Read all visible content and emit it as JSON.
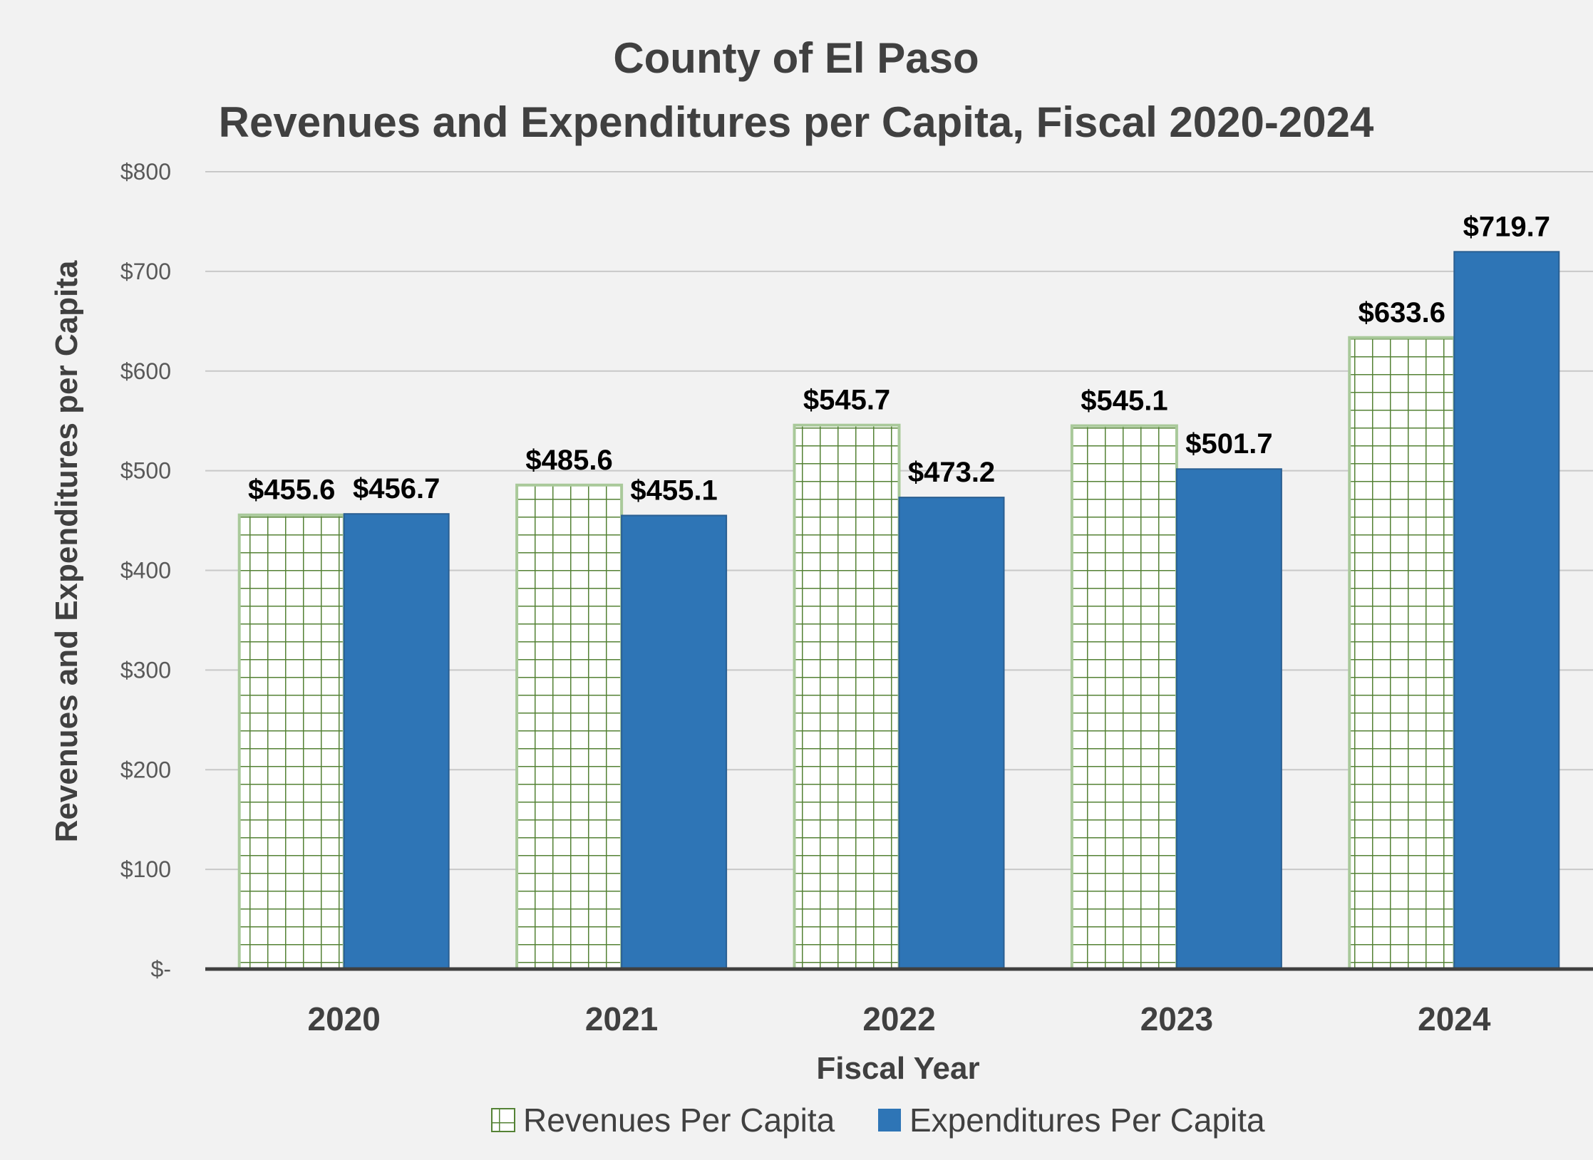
{
  "chart_data": {
    "type": "bar",
    "title": [
      "County of El Paso",
      "Revenues and Expenditures per Capita, Fiscal 2020-2024"
    ],
    "xlabel": "Fiscal Year",
    "ylabel": "Revenues and Expenditures per Capita",
    "categories": [
      "2020",
      "2021",
      "2022",
      "2023",
      "2024"
    ],
    "series": [
      {
        "name": "Revenues Per Capita",
        "values": [
          455.6,
          485.6,
          545.7,
          545.1,
          633.6
        ],
        "labels": [
          "$455.6",
          "$485.6",
          "$545.7",
          "$545.1",
          "$633.6"
        ],
        "fill": "grid-pattern",
        "color": "#548235"
      },
      {
        "name": "Expenditures Per Capita",
        "values": [
          456.7,
          455.1,
          473.2,
          501.7,
          719.7
        ],
        "labels": [
          "$456.7",
          "$455.1",
          "$473.2",
          "$501.7",
          "$719.7"
        ],
        "fill": "solid",
        "color": "#2e75b6"
      }
    ],
    "ylim": [
      0,
      800
    ],
    "yticks": [
      0,
      100,
      200,
      300,
      400,
      500,
      600,
      700,
      800
    ],
    "ytick_labels": [
      "$-",
      "$100",
      "$200",
      "$300",
      "$400",
      "$500",
      "$600",
      "$700",
      "$800"
    ],
    "grid": true,
    "legend_position": "bottom"
  }
}
